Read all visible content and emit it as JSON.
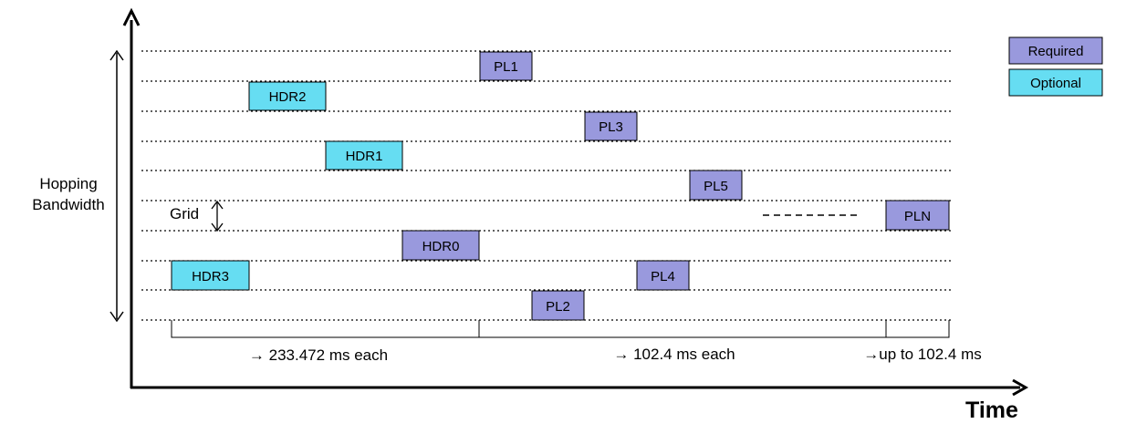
{
  "diagram": {
    "y_axis_label_line1": "Hopping",
    "y_axis_label_line2": "Bandwidth",
    "x_axis_label": "Time",
    "grid_label": "Grid",
    "legend": {
      "required": "Required",
      "optional": "Optional"
    },
    "colors": {
      "required": "#9999dd",
      "optional": "#66ddf2",
      "axis": "#000000",
      "grid_line": "#000000"
    },
    "blocks": {
      "pl1": "PL1",
      "hdr2": "HDR2",
      "pl3": "PL3",
      "hdr1": "HDR1",
      "pl5": "PL5",
      "pln": "PLN",
      "hdr0": "HDR0",
      "hdr3": "HDR3",
      "pl4": "PL4",
      "pl2": "PL2"
    },
    "durations": {
      "hdr_segment": "→ 233.472 ms each",
      "pl_segment": "→ 102.4 ms each",
      "last_segment": "→up to 102.4 ms"
    }
  }
}
